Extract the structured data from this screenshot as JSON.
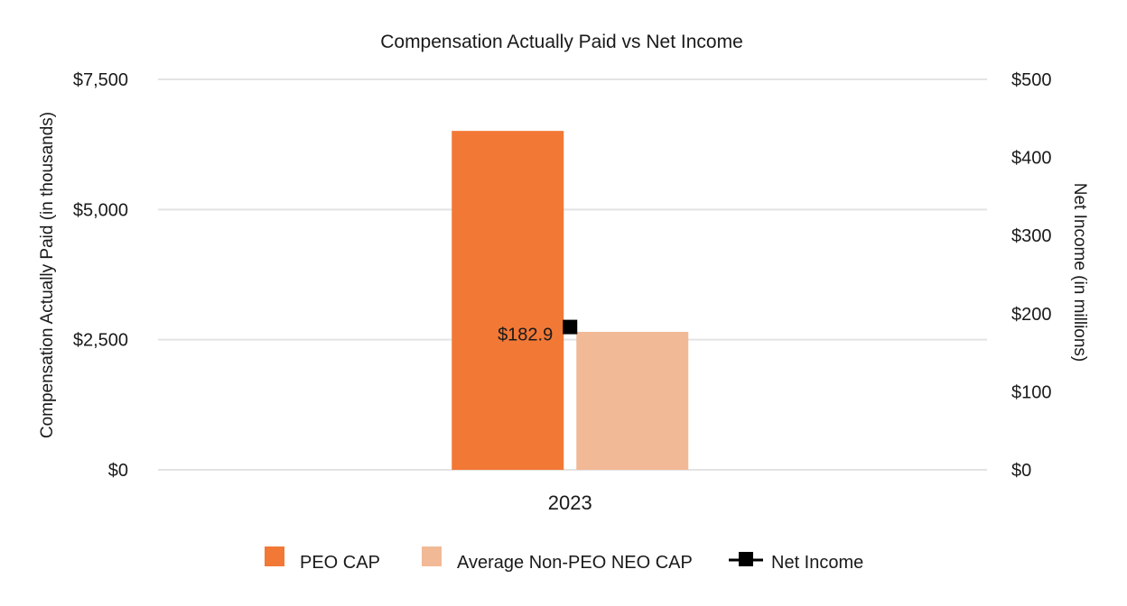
{
  "chart_data": {
    "type": "bar",
    "title": "Compensation Actually Paid vs Net Income",
    "categories": [
      "2023"
    ],
    "y_left": {
      "label": "Compensation Actually Paid (in thousands)",
      "lim": [
        0,
        7500
      ],
      "ticks": [
        0,
        2500,
        5000,
        7500
      ],
      "tick_labels": [
        "$0",
        "$2,500",
        "$5,000",
        "$7,500"
      ]
    },
    "y_right": {
      "label": "Net Income (in millions)",
      "lim": [
        0,
        500
      ],
      "ticks": [
        0,
        100,
        200,
        300,
        400,
        500
      ],
      "tick_labels": [
        "$0",
        "$100",
        "$200",
        "$300",
        "$400",
        "$500"
      ]
    },
    "series": [
      {
        "name": "PEO CAP",
        "type": "bar",
        "axis": "left",
        "color": "#f27836",
        "values": [
          6510
        ]
      },
      {
        "name": "Average Non-PEO NEO CAP",
        "type": "bar",
        "axis": "left",
        "color": "#f2b996",
        "values": [
          2650
        ]
      },
      {
        "name": "Net Income",
        "type": "line-marker",
        "axis": "right",
        "color": "#000000",
        "values": [
          182.9
        ],
        "data_labels": [
          "$182.9"
        ]
      }
    ],
    "grid": true,
    "legend_position": "bottom"
  }
}
